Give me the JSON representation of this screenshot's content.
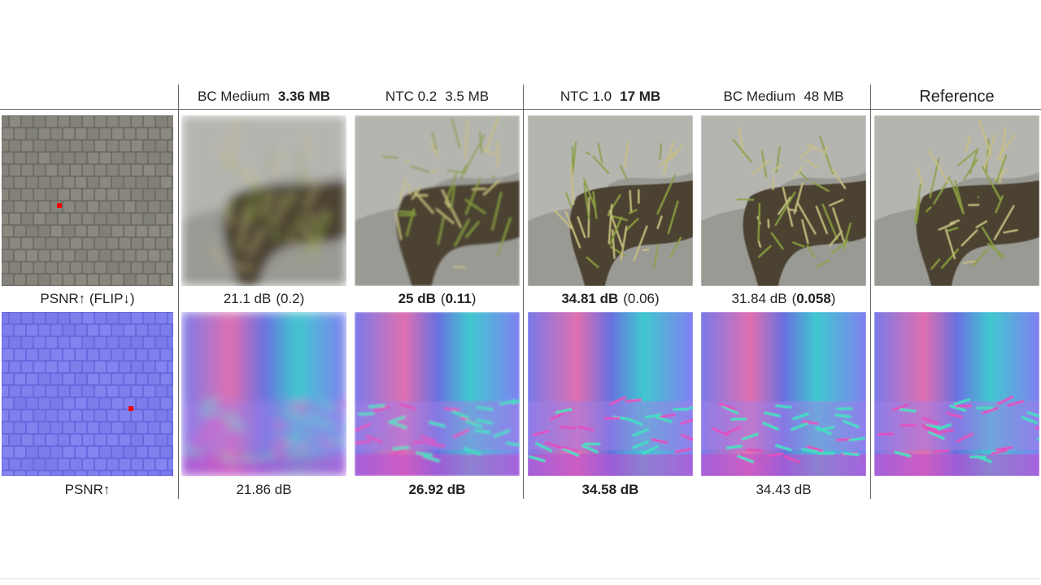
{
  "headers": [
    [
      {
        "text": "BC Medium"
      },
      {
        "text": "3.36 MB",
        "bold": true
      }
    ],
    [
      {
        "text": "NTC 0.2"
      },
      {
        "text": "3.5 MB"
      }
    ],
    [
      {
        "text": "NTC 1.0"
      },
      {
        "text": "17 MB",
        "bold": true
      }
    ],
    [
      {
        "text": "BC Medium"
      },
      {
        "text": "48 MB"
      }
    ],
    [
      {
        "text": "Reference"
      }
    ]
  ],
  "rows": [
    {
      "metric": "PSNR↑ (FLIP↓)",
      "cells": [
        {
          "value": {
            "text": "21.1 dB"
          },
          "flip": [
            {
              "text": "(0.2)"
            }
          ]
        },
        {
          "value": {
            "text": "25 dB",
            "bold": true
          },
          "flip": [
            {
              "text": "("
            },
            {
              "text": "0.11",
              "bold": true
            },
            {
              "text": ")"
            }
          ]
        },
        {
          "value": {
            "text": "34.81 dB",
            "bold": true
          },
          "flip": [
            {
              "text": "(0.06)"
            }
          ]
        },
        {
          "value": {
            "text": "31.84 dB"
          },
          "flip": [
            {
              "text": "("
            },
            {
              "text": "0.058",
              "bold": true
            },
            {
              "text": ")"
            }
          ]
        }
      ]
    },
    {
      "metric": "PSNR↑",
      "cells": [
        {
          "value": {
            "text": "21.86 dB"
          }
        },
        {
          "value": {
            "text": "26.92 dB",
            "bold": true
          }
        },
        {
          "value": {
            "text": "34.58 dB",
            "bold": true
          }
        },
        {
          "value": {
            "text": "34.43 dB"
          }
        }
      ]
    }
  ]
}
